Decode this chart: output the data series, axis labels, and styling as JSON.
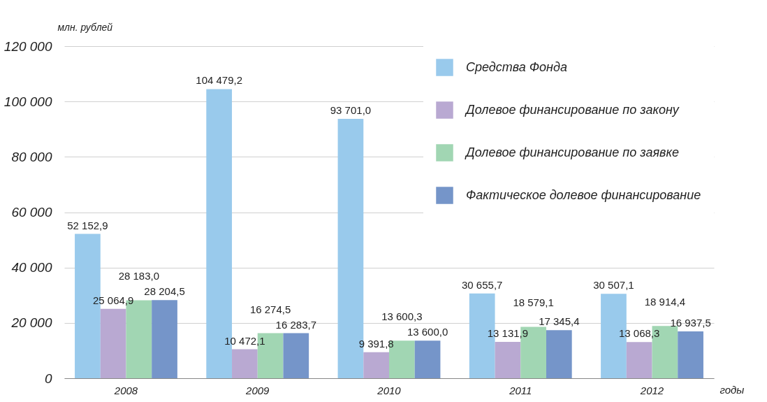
{
  "chart_data": {
    "type": "bar",
    "ylabel": "млн. рублей",
    "xlabel": "годы",
    "categories": [
      "2008",
      "2009",
      "2010",
      "2011",
      "2012"
    ],
    "series": [
      {
        "name": "Средства Фонда",
        "color": "#99caec",
        "values": [
          52152.9,
          104479.2,
          93701.0,
          30655.7,
          30507.1
        ],
        "value_labels": [
          "52 152,9",
          "104 479,2",
          "93 701,0",
          "30 655,7",
          "30 507,1"
        ]
      },
      {
        "name": "Долевое финансирование по закону",
        "color": "#b9a9d2",
        "values": [
          25064.9,
          10472.1,
          9391.8,
          13131.9,
          13068.3
        ],
        "value_labels": [
          "25 064,9",
          "10 472,1",
          "9 391,8",
          "13 131,9",
          "13 068,3"
        ]
      },
      {
        "name": "Долевое финансирование по заявке",
        "color": "#a1d6b3",
        "values": [
          28183.0,
          16274.5,
          13600.3,
          18579.1,
          18914.4
        ],
        "value_labels": [
          "28 183,0",
          "16 274,5",
          "13 600,3",
          "18 579,1",
          "18 914,4"
        ]
      },
      {
        "name": "Фактическое долевое финансирование",
        "color": "#7595c9",
        "values": [
          28204.5,
          16283.7,
          13600.0,
          17345.4,
          16937.5
        ],
        "value_labels": [
          "28 204,5",
          "16 283,7",
          "13 600,0",
          "17 345,4",
          "16 937,5"
        ]
      }
    ],
    "ylim": [
      0,
      120000
    ],
    "yticks": [
      {
        "value": 0,
        "label": "0"
      },
      {
        "value": 20000,
        "label": "20 000"
      },
      {
        "value": 40000,
        "label": "40 000"
      },
      {
        "value": 60000,
        "label": "60 000"
      },
      {
        "value": 80000,
        "label": "80 000"
      },
      {
        "value": 100000,
        "label": "100 000"
      },
      {
        "value": 120000,
        "label": "120 000"
      }
    ],
    "grid": "y",
    "legend": "top right"
  }
}
